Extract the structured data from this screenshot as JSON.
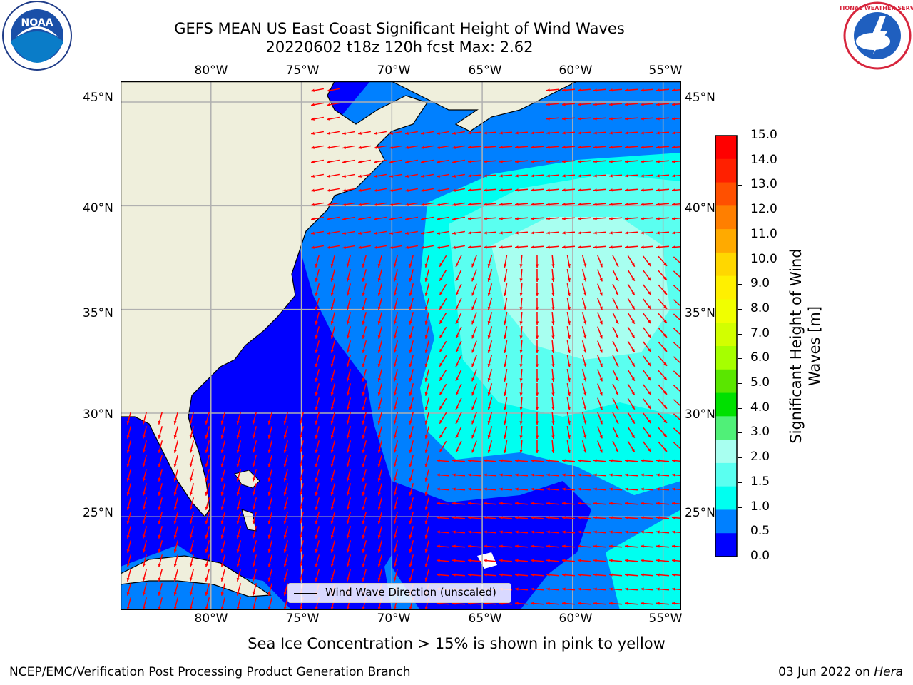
{
  "title": {
    "line1": "GEFS MEAN US East Coast Significant Height of Wind Waves",
    "line2": "20220602 t18z 120h fcst   Max: 2.62"
  },
  "logos": {
    "left": "NOAA",
    "right": "NATIONAL WEATHER SERVICE"
  },
  "map": {
    "lon_labels": [
      "80°W",
      "75°W",
      "70°W",
      "65°W",
      "60°W",
      "55°W"
    ],
    "lat_labels": [
      "45°N",
      "40°N",
      "35°N",
      "30°N",
      "25°N"
    ],
    "legend_label": "Wind Wave Direction (unscaled)",
    "colors": {
      "land": "#efefdc",
      "coast": "#000000",
      "grid": "#b0b0b0",
      "arrow": "#ff0000"
    }
  },
  "colorbar": {
    "title_line1": "Significant Height of Wind",
    "title_line2": "Waves [m]",
    "ticks": [
      "15.0",
      "14.0",
      "13.0",
      "12.0",
      "11.0",
      "10.0",
      "9.0",
      "8.0",
      "7.0",
      "6.0",
      "5.0",
      "4.0",
      "3.0",
      "2.0",
      "1.5",
      "1.0",
      "0.5",
      "0.0"
    ],
    "colors_top_to_bottom": [
      "#ff0000",
      "#ff2000",
      "#ff5000",
      "#ff7f00",
      "#ffaa00",
      "#ffd700",
      "#fff000",
      "#f0ff00",
      "#d2ff00",
      "#a6ff00",
      "#5ae600",
      "#00e000",
      "#50f078",
      "#a8fff0",
      "#5afff0",
      "#00fff0",
      "#0080ff",
      "#0000ff"
    ]
  },
  "chart_data": {
    "type": "heatmap",
    "title": "GEFS MEAN US East Coast Significant Height of Wind Waves",
    "subtitle": "20220602 t18z 120h fcst   Max: 2.62",
    "lon_range": [
      -85,
      -54
    ],
    "lat_range": [
      20.5,
      46
    ],
    "levels": [
      0.0,
      0.5,
      1.0,
      1.5,
      2.0,
      3.0,
      4.0,
      5.0,
      6.0,
      7.0,
      8.0,
      9.0,
      10.0,
      11.0,
      12.0,
      13.0,
      14.0,
      15.0
    ],
    "max_value": 2.62,
    "units": "m",
    "grid": true,
    "vector_field": "Wind Wave Direction (unscaled)"
  },
  "note": "Sea Ice Concentration > 15% is shown in pink to yellow",
  "footer": {
    "left": "NCEP/EMC/Verification Post Processing Product Generation Branch",
    "right_date": "03 Jun 2022 on ",
    "right_machine": "Hera"
  }
}
